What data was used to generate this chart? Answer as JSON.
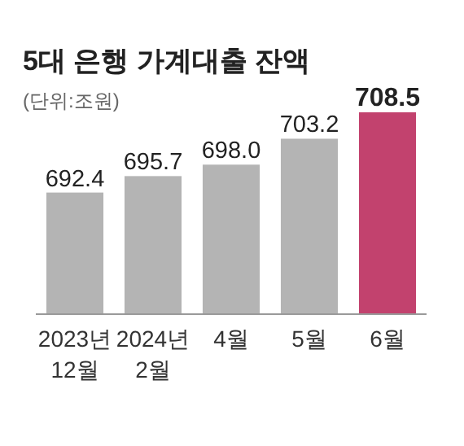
{
  "chart_data": {
    "type": "bar",
    "title": "5대 은행 가계대출 잔액",
    "subtitle": "(단위:조원)",
    "categories": [
      "2023년\n12월",
      "2024년\n2월",
      "4월",
      "5월",
      "6월"
    ],
    "values": [
      692.4,
      695.7,
      698.0,
      703.2,
      708.5
    ],
    "value_labels": [
      "692.4",
      "695.7",
      "698.0",
      "703.2",
      "708.5"
    ],
    "ylim": [
      668,
      708.5
    ],
    "colors": [
      "#b4b4b4",
      "#b4b4b4",
      "#b4b4b4",
      "#b4b4b4",
      "#c2426e"
    ]
  }
}
